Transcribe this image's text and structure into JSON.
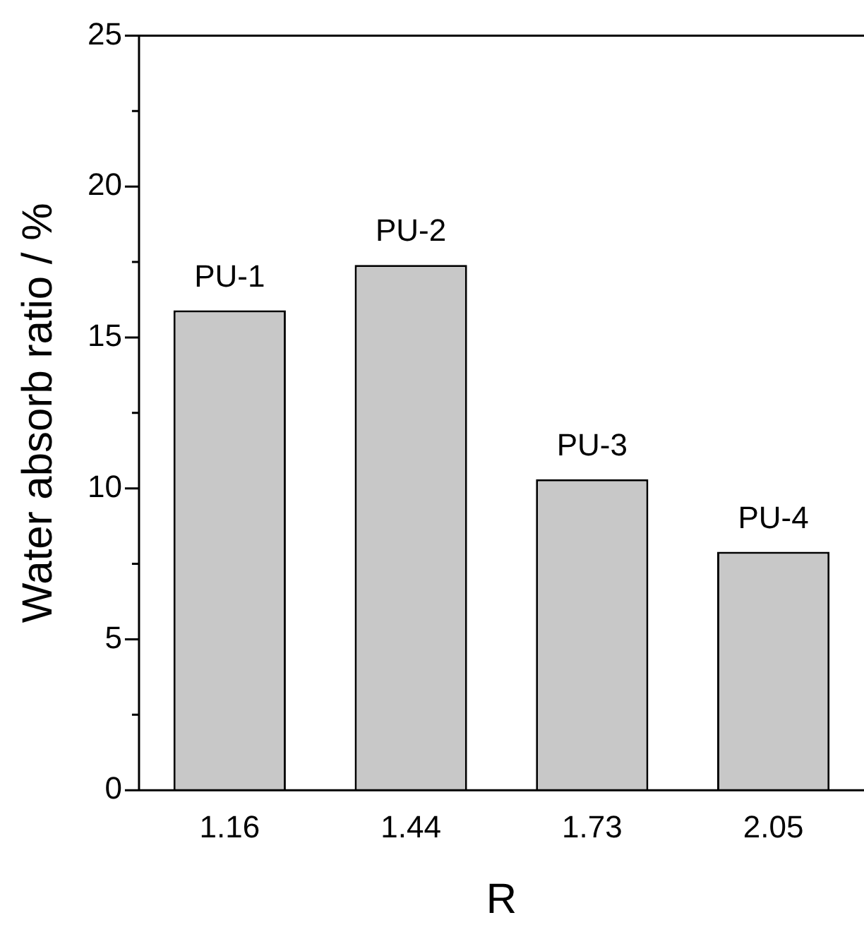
{
  "chart_data": {
    "type": "bar",
    "xlabel": "R",
    "ylabel": "Water absorb ratio / %",
    "categories": [
      "1.16",
      "1.44",
      "1.73",
      "2.05"
    ],
    "values": [
      15.9,
      17.4,
      10.3,
      7.9
    ],
    "color": "#c8c8c8",
    "ylim": [
      0,
      25
    ],
    "yticks": [
      0,
      5,
      10,
      15,
      20,
      25
    ],
    "grid": false,
    "legend": false,
    "annotations": [
      {
        "text": "PU-1",
        "x": "1.16",
        "y": 15.9
      },
      {
        "text": "PU-2",
        "x": "1.44",
        "y": 17.4
      },
      {
        "text": "PU-3",
        "x": "1.73",
        "y": 10.3
      },
      {
        "text": "PU-4",
        "x": "2.05",
        "y": 7.9
      }
    ]
  }
}
